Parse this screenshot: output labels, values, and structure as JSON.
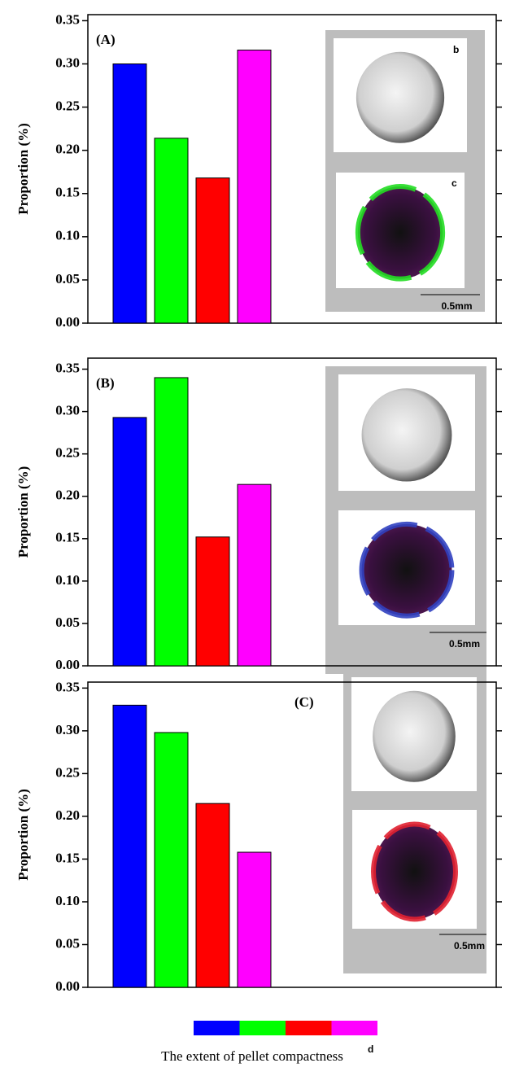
{
  "chart_data": [
    {
      "type": "bar",
      "panel_label": "(A)",
      "y_label": "Proportion (%)",
      "categories": [
        null,
        null,
        null,
        null
      ],
      "values": [
        0.3,
        0.214,
        0.168,
        0.316
      ],
      "colors": [
        "#0000ff",
        "#00ff00",
        "#ff0000",
        "#ff00ff"
      ],
      "ylim": [
        0,
        0.357
      ],
      "yticks": [
        {
          "value": 0,
          "label": "0.00"
        },
        {
          "value": 0.05,
          "label": "0.05"
        },
        {
          "value": 0.1,
          "label": "0.10"
        },
        {
          "value": 0.15,
          "label": "0.15"
        },
        {
          "value": 0.2,
          "label": "0.20"
        },
        {
          "value": 0.25,
          "label": "0.25"
        },
        {
          "value": 0.3,
          "label": "0.30"
        },
        {
          "value": 0.35,
          "label": "0.35"
        }
      ],
      "inset_labels": [
        "b",
        "c"
      ],
      "scale_bar": "0.5mm"
    },
    {
      "type": "bar",
      "panel_label": "(B)",
      "y_label": "Proportion (%)",
      "categories": [
        null,
        null,
        null,
        null
      ],
      "values": [
        0.293,
        0.34,
        0.152,
        0.214
      ],
      "colors": [
        "#0000ff",
        "#00ff00",
        "#ff0000",
        "#ff00ff"
      ],
      "ylim": [
        0,
        0.363
      ],
      "yticks": [
        {
          "value": 0,
          "label": "0.00"
        },
        {
          "value": 0.05,
          "label": "0.05"
        },
        {
          "value": 0.1,
          "label": "0.10"
        },
        {
          "value": 0.15,
          "label": "0.15"
        },
        {
          "value": 0.2,
          "label": "0.20"
        },
        {
          "value": 0.25,
          "label": "0.25"
        },
        {
          "value": 0.3,
          "label": "0.30"
        },
        {
          "value": 0.35,
          "label": "0.35"
        }
      ],
      "scale_bar": "0.5mm"
    },
    {
      "type": "bar",
      "panel_label": "(C)",
      "y_label": "Proportion (%)",
      "categories": [
        null,
        null,
        null,
        null
      ],
      "values": [
        0.33,
        0.298,
        0.215,
        0.158
      ],
      "colors": [
        "#0000ff",
        "#00ff00",
        "#ff0000",
        "#ff00ff"
      ],
      "ylim": [
        0,
        0.357
      ],
      "yticks": [
        {
          "value": 0,
          "label": "0.00"
        },
        {
          "value": 0.05,
          "label": "0.05"
        },
        {
          "value": 0.1,
          "label": "0.10"
        },
        {
          "value": 0.15,
          "label": "0.15"
        },
        {
          "value": 0.2,
          "label": "0.20"
        },
        {
          "value": 0.25,
          "label": "0.25"
        },
        {
          "value": 0.3,
          "label": "0.30"
        },
        {
          "value": 0.35,
          "label": "0.35"
        }
      ],
      "scale_bar": "0.5mm"
    }
  ],
  "legend": {
    "label": "The extent of pellet compactness",
    "note": "d"
  }
}
